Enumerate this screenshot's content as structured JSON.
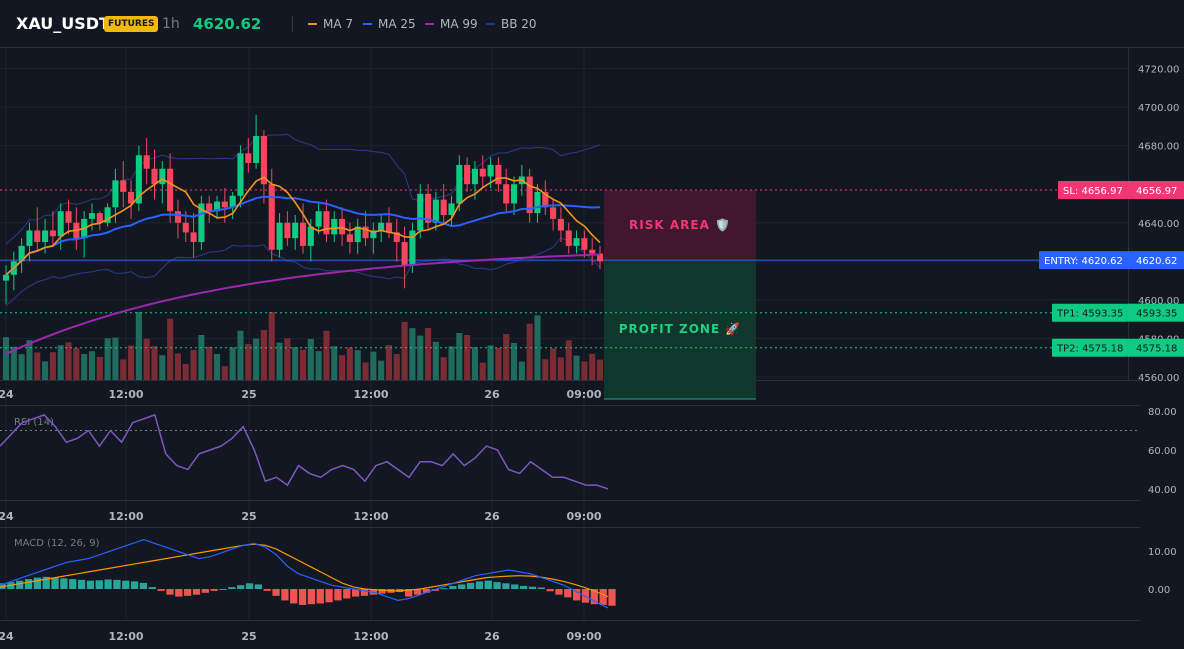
{
  "header": {
    "symbol": "XAU_USDT",
    "badge": "FUTURES",
    "timeframe": "1h",
    "last_price": "4620.62"
  },
  "legend": [
    {
      "label": "MA 7",
      "color": "#f7931a"
    },
    {
      "label": "MA 25",
      "color": "#2962ff"
    },
    {
      "label": "MA 99",
      "color": "#9c27b0"
    },
    {
      "label": "BB 20",
      "color": "#1e3a8a"
    }
  ],
  "zones": {
    "risk_label": "RISK AREA 🛡️",
    "profit_label": "PROFIT ZONE 🚀"
  },
  "price_levels": {
    "sl": {
      "tag": "SL: 4656.97",
      "value": "4656.97",
      "price": 4656.97
    },
    "entry": {
      "tag": "ENTRY: 4620.62",
      "value": "4620.62",
      "price": 4620.62
    },
    "tp1": {
      "tag": "TP1: 4593.35",
      "value": "4593.35",
      "price": 4593.35
    },
    "tp2": {
      "tag": "TP2: 4575.18",
      "value": "4575.18",
      "price": 4575.18
    }
  },
  "rsi_label": "RSI (14)",
  "macd_label": "MACD (12, 26, 9)",
  "chart_data": [
    {
      "type": "candlestick",
      "x_ticks": [
        "24",
        "12:00",
        "25",
        "12:00",
        "26",
        "09:00"
      ],
      "y_ticks": [
        "4720.00",
        "4700.00",
        "4680.00",
        "4640.00",
        "4620.00",
        "4600.00",
        "4580.00",
        "4560.00"
      ],
      "ylim": [
        4558,
        4730
      ],
      "candles": [
        [
          4610,
          4618,
          4598,
          4613
        ],
        [
          4613,
          4625,
          4605,
          4620
        ],
        [
          4620,
          4632,
          4614,
          4628
        ],
        [
          4628,
          4640,
          4620,
          4636
        ],
        [
          4636,
          4648,
          4626,
          4630
        ],
        [
          4630,
          4642,
          4624,
          4636
        ],
        [
          4636,
          4646,
          4628,
          4633
        ],
        [
          4633,
          4650,
          4626,
          4646
        ],
        [
          4646,
          4652,
          4634,
          4640
        ],
        [
          4640,
          4648,
          4626,
          4632
        ],
        [
          4632,
          4646,
          4622,
          4642
        ],
        [
          4642,
          4650,
          4636,
          4645
        ],
        [
          4645,
          4646,
          4636,
          4640
        ],
        [
          4640,
          4650,
          4638,
          4648
        ],
        [
          4648,
          4668,
          4640,
          4662
        ],
        [
          4662,
          4672,
          4648,
          4656
        ],
        [
          4656,
          4662,
          4642,
          4650
        ],
        [
          4650,
          4680,
          4646,
          4675
        ],
        [
          4675,
          4684,
          4660,
          4668
        ],
        [
          4668,
          4678,
          4652,
          4660
        ],
        [
          4660,
          4672,
          4650,
          4668
        ],
        [
          4668,
          4676,
          4640,
          4646
        ],
        [
          4646,
          4652,
          4632,
          4640
        ],
        [
          4640,
          4646,
          4630,
          4635
        ],
        [
          4635,
          4645,
          4622,
          4630
        ],
        [
          4630,
          4654,
          4626,
          4650
        ],
        [
          4650,
          4654,
          4640,
          4646
        ],
        [
          4646,
          4654,
          4642,
          4651
        ],
        [
          4651,
          4658,
          4640,
          4648
        ],
        [
          4648,
          4656,
          4642,
          4654
        ],
        [
          4654,
          4680,
          4648,
          4676
        ],
        [
          4676,
          4684,
          4666,
          4671
        ],
        [
          4671,
          4696,
          4668,
          4685
        ],
        [
          4685,
          4688,
          4650,
          4660
        ],
        [
          4660,
          4668,
          4620,
          4626
        ],
        [
          4626,
          4645,
          4622,
          4640
        ],
        [
          4640,
          4646,
          4628,
          4632
        ],
        [
          4632,
          4644,
          4626,
          4640
        ],
        [
          4640,
          4650,
          4624,
          4628
        ],
        [
          4628,
          4642,
          4620,
          4638
        ],
        [
          4638,
          4650,
          4634,
          4646
        ],
        [
          4646,
          4652,
          4630,
          4634
        ],
        [
          4634,
          4646,
          4630,
          4642
        ],
        [
          4642,
          4648,
          4628,
          4634
        ],
        [
          4634,
          4640,
          4624,
          4630
        ],
        [
          4630,
          4642,
          4624,
          4638
        ],
        [
          4638,
          4646,
          4628,
          4632
        ],
        [
          4632,
          4640,
          4624,
          4636
        ],
        [
          4636,
          4644,
          4630,
          4640
        ],
        [
          4640,
          4648,
          4632,
          4635
        ],
        [
          4635,
          4642,
          4620,
          4630
        ],
        [
          4630,
          4638,
          4606,
          4618
        ],
        [
          4618,
          4640,
          4614,
          4636
        ],
        [
          4636,
          4660,
          4632,
          4655
        ],
        [
          4655,
          4660,
          4636,
          4640
        ],
        [
          4640,
          4656,
          4636,
          4652
        ],
        [
          4652,
          4660,
          4640,
          4644
        ],
        [
          4644,
          4654,
          4638,
          4650
        ],
        [
          4650,
          4675,
          4646,
          4670
        ],
        [
          4670,
          4674,
          4656,
          4660
        ],
        [
          4660,
          4672,
          4652,
          4668
        ],
        [
          4668,
          4675,
          4658,
          4664
        ],
        [
          4664,
          4674,
          4658,
          4670
        ],
        [
          4670,
          4674,
          4656,
          4660
        ],
        [
          4660,
          4668,
          4646,
          4650
        ],
        [
          4650,
          4664,
          4644,
          4660
        ],
        [
          4660,
          4670,
          4654,
          4664
        ],
        [
          4664,
          4668,
          4640,
          4645
        ],
        [
          4645,
          4660,
          4640,
          4656
        ],
        [
          4656,
          4662,
          4644,
          4648
        ],
        [
          4648,
          4652,
          4636,
          4642
        ],
        [
          4642,
          4648,
          4630,
          4636
        ],
        [
          4636,
          4640,
          4624,
          4628
        ],
        [
          4628,
          4636,
          4624,
          4632
        ],
        [
          4632,
          4636,
          4622,
          4626
        ],
        [
          4626,
          4632,
          4618,
          4624
        ],
        [
          4624,
          4628,
          4616,
          4620
        ]
      ],
      "volume_ylim": [
        0,
        100
      ]
    },
    {
      "type": "line",
      "title": "RSI (14)",
      "y_ticks": [
        "80.00",
        "60.00",
        "40.00"
      ],
      "ylim": [
        32,
        86
      ],
      "overbought": 70,
      "values": [
        62,
        68,
        74,
        76,
        78,
        72,
        64,
        66,
        70,
        62,
        70,
        64,
        74,
        76,
        78,
        58,
        52,
        50,
        58,
        60,
        62,
        66,
        72,
        60,
        44,
        46,
        42,
        52,
        48,
        46,
        50,
        52,
        50,
        44,
        52,
        54,
        50,
        46,
        54,
        54,
        52,
        58,
        52,
        56,
        62,
        60,
        50,
        48,
        54,
        50,
        46,
        46,
        44,
        42,
        42,
        40
      ]
    },
    {
      "type": "bar",
      "title": "MACD (12, 26, 9)",
      "y_ticks": [
        "10.00",
        "0.00"
      ],
      "ylim": [
        -16,
        16
      ],
      "histogram": [
        1.5,
        1.8,
        2.2,
        2.6,
        3.0,
        3.2,
        3.0,
        2.8,
        2.6,
        2.4,
        2.2,
        2.3,
        2.5,
        2.4,
        2.2,
        2.0,
        1.6,
        0.5,
        -0.5,
        -1.5,
        -2.0,
        -1.8,
        -1.5,
        -1.0,
        -0.5,
        0,
        0.5,
        1.0,
        1.5,
        1.2,
        -0.5,
        -1.8,
        -3.0,
        -3.8,
        -4.2,
        -4.0,
        -3.8,
        -3.5,
        -3.0,
        -2.5,
        -2.0,
        -1.8,
        -1.5,
        -1.2,
        -1.0,
        -0.8,
        -2.0,
        -1.5,
        -1.0,
        -0.5,
        0.2,
        0.8,
        1.2,
        1.6,
        2.0,
        2.2,
        1.8,
        1.5,
        1.2,
        0.8,
        0.6,
        0.4,
        -0.6,
        -1.5,
        -2.2,
        -3.0,
        -3.6,
        -4.0,
        -4.2,
        -4.4
      ],
      "macd": [
        1,
        2,
        3,
        4,
        5,
        6,
        7,
        7.5,
        8,
        9,
        10,
        11,
        12,
        13,
        12,
        11,
        10,
        9,
        8,
        8.5,
        9.5,
        10.5,
        11.5,
        12,
        11,
        9,
        6,
        4,
        3,
        2,
        1,
        0.5,
        0,
        -0.5,
        -1,
        -2,
        -3,
        -2.5,
        -1.5,
        -0.5,
        0.5,
        1.5,
        2.5,
        3.5,
        4,
        4.5,
        5,
        4.5,
        4,
        3,
        2,
        1,
        -0.5,
        -2,
        -3.5,
        -5
      ],
      "signal": [
        0.5,
        1,
        1.5,
        2,
        2.5,
        3,
        3.5,
        4,
        4.5,
        5,
        5.5,
        6,
        6.5,
        7,
        7.5,
        8,
        8.5,
        9,
        9.5,
        10,
        10.5,
        11,
        11.5,
        11.8,
        11.5,
        10.5,
        9,
        7.5,
        6,
        4.5,
        3,
        1.5,
        0.5,
        0,
        -0.2,
        -0.4,
        -0.5,
        -0.3,
        0,
        0.5,
        1,
        1.5,
        2,
        2.5,
        3,
        3.2,
        3.4,
        3.5,
        3.4,
        3.1,
        2.6,
        2,
        1.2,
        0.3,
        -0.8,
        -2
      ]
    }
  ]
}
